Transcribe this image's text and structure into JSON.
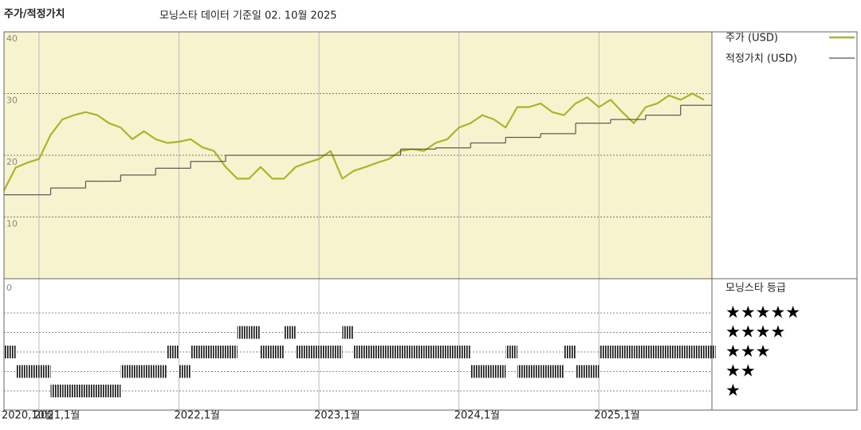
{
  "chart_data": {
    "type": "line",
    "title": "주가/적정가치",
    "subtitle": "모닝스타 데이터 기준일 02. 10월 2025",
    "x": [
      "2020-10",
      "2020-11",
      "2020-12",
      "2021-01",
      "2021-02",
      "2021-03",
      "2021-04",
      "2021-05",
      "2021-06",
      "2021-07",
      "2021-08",
      "2021-09",
      "2021-10",
      "2021-11",
      "2021-12",
      "2022-01",
      "2022-02",
      "2022-03",
      "2022-04",
      "2022-05",
      "2022-06",
      "2022-07",
      "2022-08",
      "2022-09",
      "2022-10",
      "2022-11",
      "2022-12",
      "2023-01",
      "2023-02",
      "2023-03",
      "2023-04",
      "2023-05",
      "2023-06",
      "2023-07",
      "2023-08",
      "2023-09",
      "2023-10",
      "2023-11",
      "2023-12",
      "2024-01",
      "2024-02",
      "2024-03",
      "2024-04",
      "2024-05",
      "2024-06",
      "2024-07",
      "2024-08",
      "2024-09",
      "2024-10",
      "2024-11",
      "2024-12",
      "2025-01",
      "2025-02",
      "2025-03",
      "2025-04",
      "2025-05",
      "2025-06",
      "2025-07",
      "2025-08",
      "2025-09",
      "2025-10"
    ],
    "xlim": [
      "2020-10",
      "2025-10"
    ],
    "xticks": [
      {
        "value": "2020-10",
        "label": "2020,10월"
      },
      {
        "value": "2021-01",
        "label": "2021,1월"
      },
      {
        "value": "2022-01",
        "label": "2022,1월"
      },
      {
        "value": "2023-01",
        "label": "2023,1월"
      },
      {
        "value": "2024-01",
        "label": "2024,1월"
      },
      {
        "value": "2025-01",
        "label": "2025,1월"
      }
    ],
    "ylim": [
      0,
      40
    ],
    "yticks": [
      10,
      20,
      30,
      40
    ],
    "grid": true,
    "series": [
      {
        "name": "주가 (USD)",
        "color": "#a9b52b",
        "values": [
          14.3,
          18,
          18.8,
          19.4,
          23.3,
          25.8,
          26.5,
          27,
          26.5,
          25.2,
          24.5,
          22.6,
          23.9,
          22.6,
          22,
          22.2,
          22.6,
          21.3,
          20.7,
          18.1,
          16.2,
          16.2,
          18.1,
          16.2,
          16.2,
          18.1,
          18.8,
          19.4,
          20.7,
          16.2,
          17.5,
          18.1,
          18.8,
          19.4,
          20.7,
          21,
          20.7,
          22,
          22.6,
          24.5,
          25.2,
          26.5,
          25.8,
          24.5,
          27.8,
          27.8,
          28.4,
          27,
          26.5,
          28.4,
          29.4,
          27.8,
          29,
          27,
          25.2,
          27.8,
          28.4,
          29.7,
          29,
          30,
          29
        ]
      },
      {
        "name": "적정가치 (USD)",
        "color": "#555555",
        "step": true,
        "values": [
          13.6,
          13.6,
          13.6,
          13.6,
          14.7,
          14.7,
          14.7,
          15.8,
          15.8,
          15.8,
          16.8,
          16.8,
          16.8,
          17.9,
          17.9,
          17.9,
          19,
          19,
          19,
          20,
          20,
          20,
          20,
          20,
          20,
          20,
          20,
          20,
          20,
          20,
          20,
          20,
          20,
          20,
          21,
          21,
          21,
          21.2,
          21.2,
          21.2,
          22,
          22,
          22,
          22.9,
          22.9,
          22.9,
          23.5,
          23.5,
          23.5,
          25.2,
          25.2,
          25.2,
          25.8,
          25.8,
          25.8,
          26.5,
          26.5,
          26.5,
          28.1,
          28.1,
          28.1
        ]
      }
    ],
    "rating": {
      "title": "모닝스타 등급",
      "axis_label": "0",
      "labels": [
        "★",
        "★★",
        "★★★",
        "★★★★",
        "★★★★★"
      ],
      "values": [
        3,
        2,
        2,
        2,
        1,
        1,
        1,
        1,
        1,
        1,
        2,
        2,
        2,
        2,
        3,
        2,
        3,
        3,
        3,
        3,
        4,
        4,
        3,
        3,
        4,
        3,
        3,
        3,
        3,
        4,
        3,
        3,
        3,
        3,
        3,
        3,
        3,
        3,
        3,
        3,
        2,
        2,
        2,
        3,
        2,
        2,
        2,
        2,
        3,
        2,
        2,
        3,
        3,
        3,
        3,
        3,
        3,
        3,
        3,
        3,
        3
      ]
    }
  }
}
